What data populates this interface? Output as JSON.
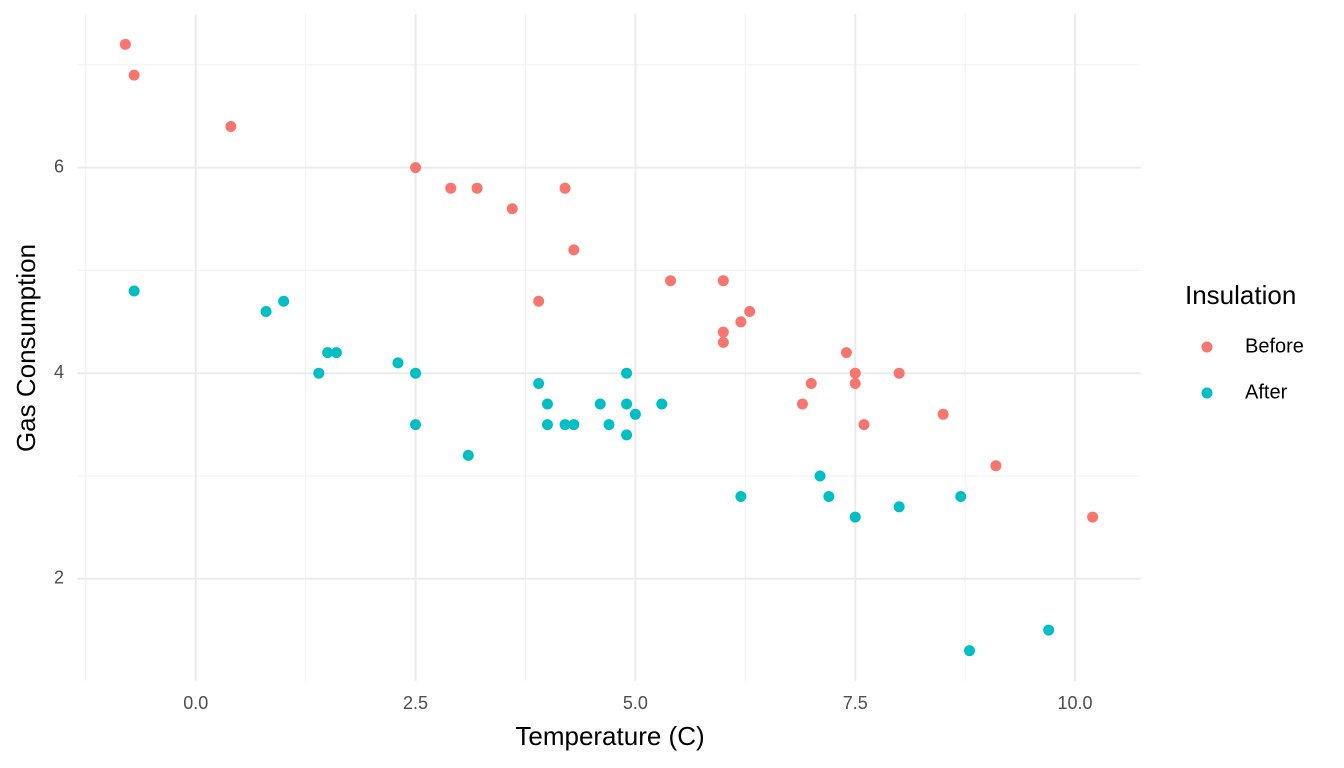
{
  "chart_data": {
    "type": "scatter",
    "x_label": "Temperature (C)",
    "y_label": "Gas Consumption",
    "legend_title": "Insulation",
    "legend_position": "right",
    "grid": true,
    "xlim": [
      -1.35,
      10.75
    ],
    "ylim": [
      1.005,
      7.495
    ],
    "xticks": [
      {
        "value": 0,
        "label": "0.0"
      },
      2.5,
      {
        "value": 5,
        "label": "5.0"
      },
      7.5,
      {
        "value": 10,
        "label": "10.0"
      }
    ],
    "yticks": [
      2,
      4,
      6
    ],
    "xminor": [
      -1.25,
      1.25,
      3.75,
      6.25,
      8.75
    ],
    "yminor": [
      3,
      5,
      7
    ],
    "series": [
      {
        "name": "Before",
        "color": "#F8766D",
        "x": [
          -0.8,
          -0.7,
          0.4,
          2.5,
          2.9,
          3.2,
          3.6,
          3.9,
          4.2,
          4.3,
          5.4,
          6.0,
          6.0,
          6.0,
          6.2,
          6.3,
          6.9,
          7.0,
          7.4,
          7.5,
          7.5,
          7.6,
          8.0,
          8.5,
          9.1,
          10.2
        ],
        "values": [
          7.2,
          6.9,
          6.4,
          6.0,
          5.8,
          5.8,
          5.6,
          4.7,
          5.8,
          5.2,
          4.9,
          4.9,
          4.3,
          4.4,
          4.5,
          4.6,
          3.7,
          3.9,
          4.2,
          4.0,
          3.9,
          3.5,
          4.0,
          3.6,
          3.1,
          2.6
        ]
      },
      {
        "name": "After",
        "color": "#00BFC4",
        "x": [
          -0.7,
          0.8,
          1.0,
          1.4,
          1.5,
          1.6,
          2.3,
          2.5,
          2.5,
          3.1,
          3.9,
          4.0,
          4.0,
          4.2,
          4.3,
          4.6,
          4.7,
          4.9,
          4.9,
          4.9,
          5.0,
          5.3,
          6.2,
          7.1,
          7.2,
          7.5,
          8.0,
          8.7,
          8.8,
          9.7
        ],
        "values": [
          4.8,
          4.6,
          4.7,
          4.0,
          4.2,
          4.2,
          4.1,
          4.0,
          3.5,
          3.2,
          3.9,
          3.5,
          3.7,
          3.5,
          3.5,
          3.7,
          3.5,
          3.4,
          3.7,
          4.0,
          3.6,
          3.7,
          2.8,
          3.0,
          2.8,
          2.6,
          2.7,
          2.8,
          1.3,
          1.5
        ]
      }
    ]
  }
}
